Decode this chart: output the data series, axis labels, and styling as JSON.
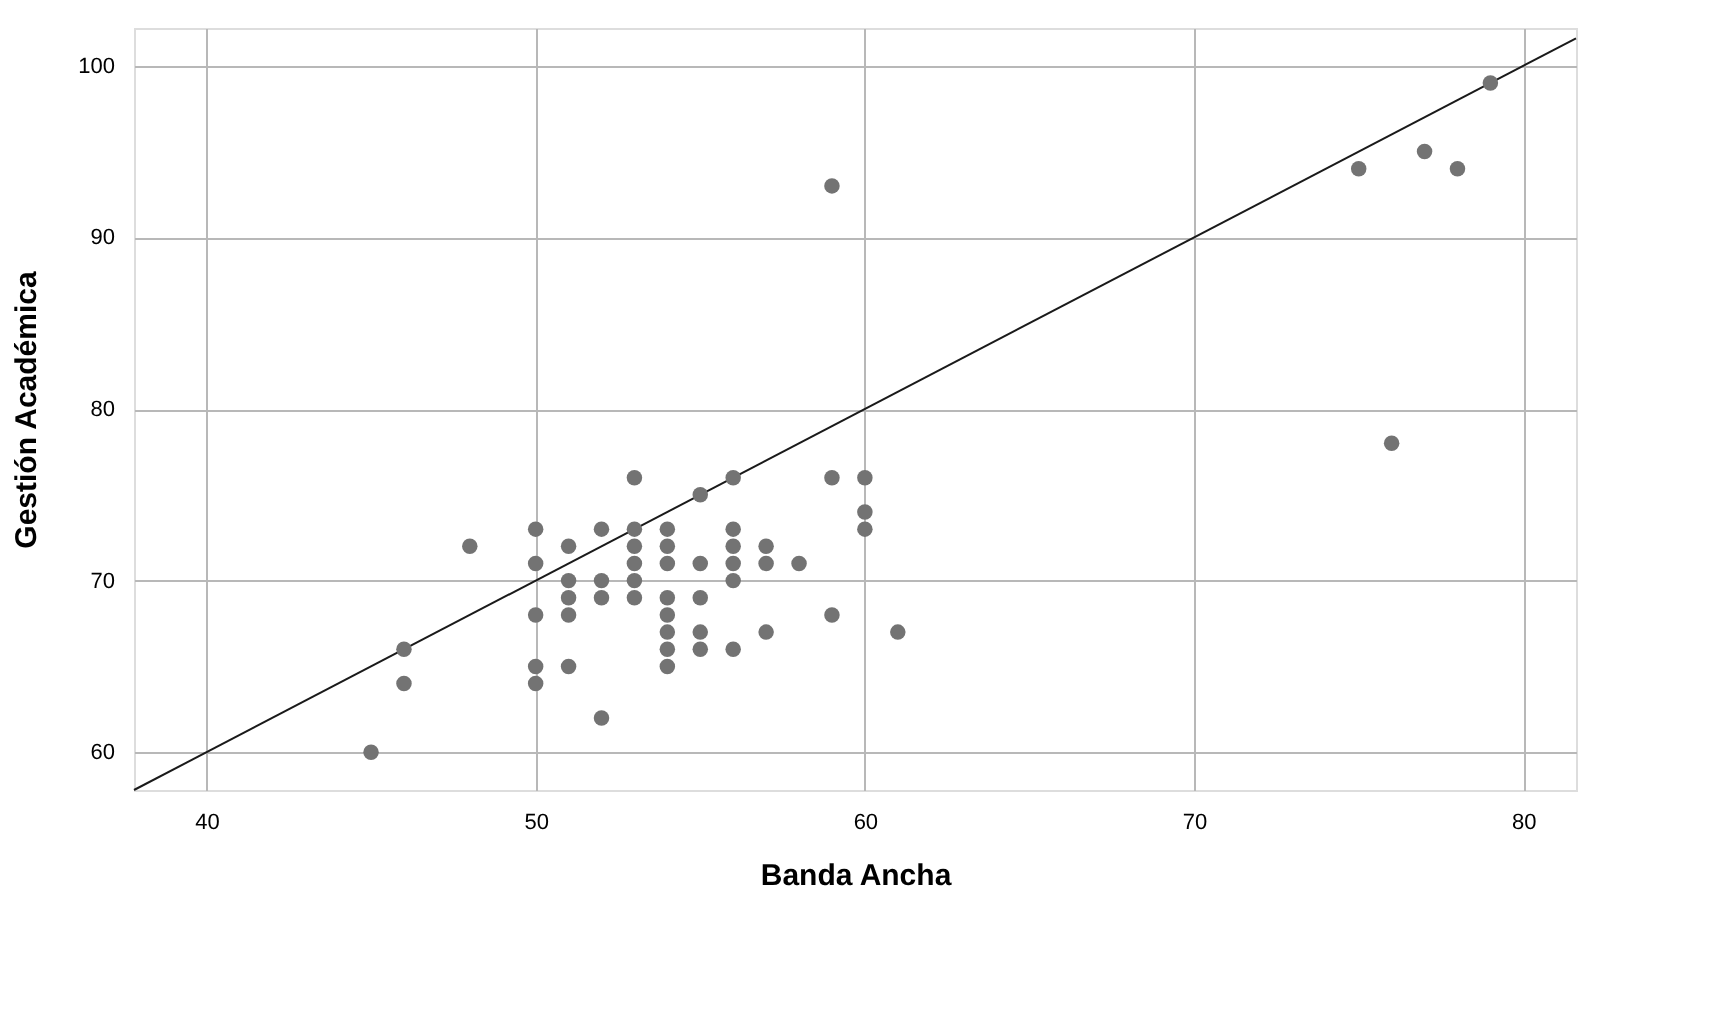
{
  "chart_data": {
    "type": "scatter",
    "xlabel": "Banda Ancha",
    "ylabel": "Gestión Académica",
    "xlim": [
      37.8,
      81.6
    ],
    "ylim": [
      57.8,
      102.2
    ],
    "xticks": [
      40,
      50,
      60,
      70,
      80
    ],
    "yticks": [
      60,
      70,
      80,
      90,
      100
    ],
    "grid": true,
    "marker": "circle",
    "series": [
      {
        "color": "#737373",
        "x": [
          45,
          46,
          46,
          48,
          50,
          50,
          50,
          50,
          50,
          51,
          51,
          51,
          51,
          51,
          52,
          52,
          52,
          52,
          53,
          53,
          53,
          53,
          53,
          53,
          54,
          54,
          54,
          54,
          54,
          54,
          54,
          54,
          55,
          55,
          55,
          55,
          55,
          56,
          56,
          56,
          56,
          56,
          56,
          57,
          57,
          57,
          58,
          59,
          59,
          59,
          60,
          60,
          60,
          61,
          75,
          76,
          77,
          78,
          79
        ],
        "values": [
          60,
          66,
          64,
          72,
          73,
          71,
          68,
          65,
          64,
          72,
          70,
          69,
          68,
          65,
          73,
          70,
          69,
          62,
          76,
          73,
          72,
          71,
          70,
          69,
          73,
          72,
          71,
          69,
          68,
          67,
          66,
          65,
          75,
          71,
          69,
          67,
          66,
          76,
          73,
          72,
          71,
          70,
          66,
          72,
          71,
          67,
          71,
          93,
          76,
          68,
          76,
          74,
          73,
          67,
          94,
          78,
          95,
          94,
          99
        ]
      },
      {
        "type": "line",
        "marker": "none",
        "color": "#1a1a1a",
        "x": [
          37.8,
          81.6
        ],
        "values": [
          57.8,
          101.6
        ]
      }
    ]
  }
}
